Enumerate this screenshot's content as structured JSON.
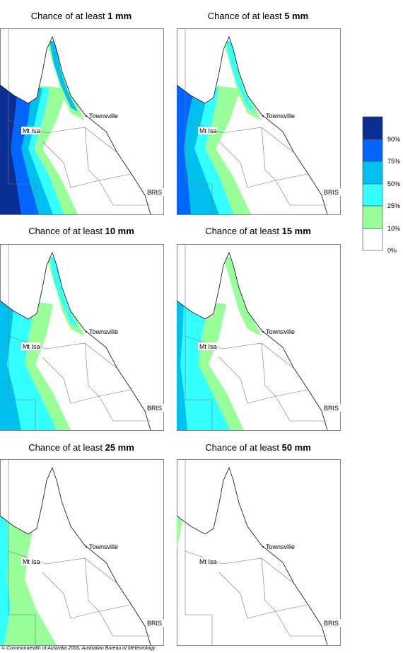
{
  "panels": [
    {
      "title": "Chance of at least",
      "amount": "1 mm",
      "places": [
        "Townsville",
        "Mt Isa",
        "BRIS"
      ]
    },
    {
      "title": "Chance of at least",
      "amount": "5 mm",
      "places": [
        "Townsville",
        "Mt Isa",
        "BRIS"
      ]
    },
    {
      "title": "Chance of at least",
      "amount": "10 mm",
      "places": [
        "Townsville",
        "Mt Isa",
        "BRIS"
      ]
    },
    {
      "title": "Chance of at least",
      "amount": "15 mm",
      "places": [
        "Townsville",
        "Mt Isa",
        "BRIS"
      ]
    },
    {
      "title": "Chance of at least",
      "amount": "25 mm",
      "places": [
        "Townsville",
        "Mt Isa",
        "BRIS"
      ]
    },
    {
      "title": "Chance of at least",
      "amount": "50 mm",
      "places": [
        "Townsville",
        "Mt Isa",
        "BRIS"
      ]
    }
  ],
  "legend": {
    "labels": [
      "90%",
      "75%",
      "50%",
      "25%",
      "10%",
      "0%"
    ]
  },
  "footer": "© Commonwealth of Australia 2006, Australian Bureau of Meteorology"
}
